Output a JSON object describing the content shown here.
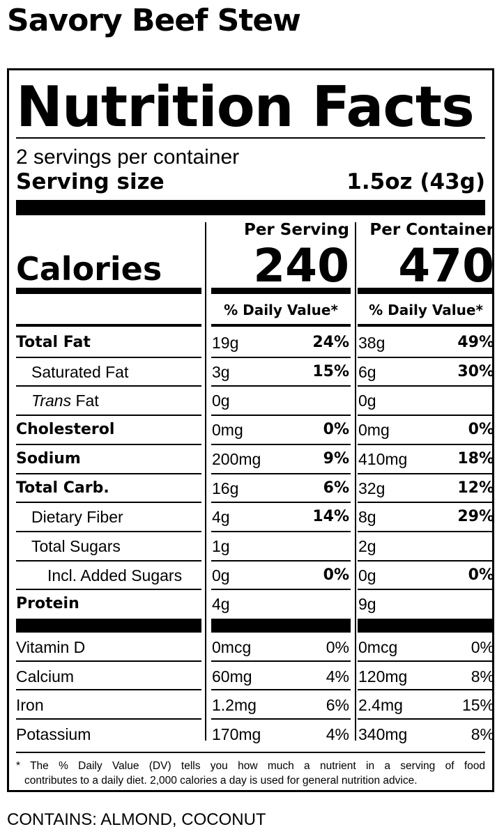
{
  "product_name": "Savory Beef Stew",
  "title": "Nutrition Facts",
  "servings_per_container": "2 servings per container",
  "serving_size_label": "Serving size",
  "serving_size_value": "1.5oz (43g)",
  "per_serving_label": "Per Serving",
  "per_container_label": "Per Container",
  "calories_label": "Calories",
  "calories_per_serving": "240",
  "calories_per_container": "470",
  "daily_value_header": "% Daily Value*",
  "nutrients": [
    {
      "name": "Total Fat",
      "style": "bold",
      "indent": 0,
      "s_amt": "19g",
      "s_dv": "24%",
      "c_amt": "38g",
      "c_dv": "49%"
    },
    {
      "name": "Saturated Fat",
      "style": "normal",
      "indent": 1,
      "s_amt": "3g",
      "s_dv": "15%",
      "c_amt": "6g",
      "c_dv": "30%"
    },
    {
      "name_italic": "Trans",
      "name": " Fat",
      "style": "normal",
      "indent": 1,
      "s_amt": "0g",
      "s_dv": "",
      "c_amt": "0g",
      "c_dv": ""
    },
    {
      "name": "Cholesterol",
      "style": "bold",
      "indent": 0,
      "s_amt": "0mg",
      "s_dv": "0%",
      "c_amt": "0mg",
      "c_dv": "0%"
    },
    {
      "name": "Sodium",
      "style": "bold",
      "indent": 0,
      "s_amt": "200mg",
      "s_dv": "9%",
      "c_amt": "410mg",
      "c_dv": "18%"
    },
    {
      "name": "Total Carb.",
      "style": "bold",
      "indent": 0,
      "s_amt": "16g",
      "s_dv": "6%",
      "c_amt": "32g",
      "c_dv": "12%"
    },
    {
      "name": "Dietary Fiber",
      "style": "normal",
      "indent": 1,
      "s_amt": "4g",
      "s_dv": "14%",
      "c_amt": "8g",
      "c_dv": "29%"
    },
    {
      "name": "Total Sugars",
      "style": "normal",
      "indent": 1,
      "s_amt": "1g",
      "s_dv": "",
      "c_amt": "2g",
      "c_dv": ""
    },
    {
      "name": "Incl. Added Sugars",
      "style": "normal",
      "indent": 2,
      "s_amt": "0g",
      "s_dv": "0%",
      "c_amt": "0g",
      "c_dv": "0%"
    },
    {
      "name": "Protein",
      "style": "bold",
      "indent": 0,
      "s_amt": "4g",
      "s_dv": "",
      "c_amt": "9g",
      "c_dv": ""
    }
  ],
  "vitamins": [
    {
      "name": "Vitamin D",
      "s_amt": "0mcg",
      "s_dv": "0%",
      "c_amt": "0mcg",
      "c_dv": "0%"
    },
    {
      "name": "Calcium",
      "s_amt": "60mg",
      "s_dv": "4%",
      "c_amt": "120mg",
      "c_dv": "8%"
    },
    {
      "name": "Iron",
      "s_amt": "1.2mg",
      "s_dv": "6%",
      "c_amt": "2.4mg",
      "c_dv": "15%"
    },
    {
      "name": "Potassium",
      "s_amt": "170mg",
      "s_dv": "4%",
      "c_amt": "340mg",
      "c_dv": "8%"
    }
  ],
  "footnote_line1": "* The % Daily Value (DV) tells you how much a nutrient in a serving of food",
  "footnote_line2": "contributes to a daily diet. 2,000 calories a day is used for general nutrition advice.",
  "allergens": "CONTAINS: ALMOND, COCONUT"
}
